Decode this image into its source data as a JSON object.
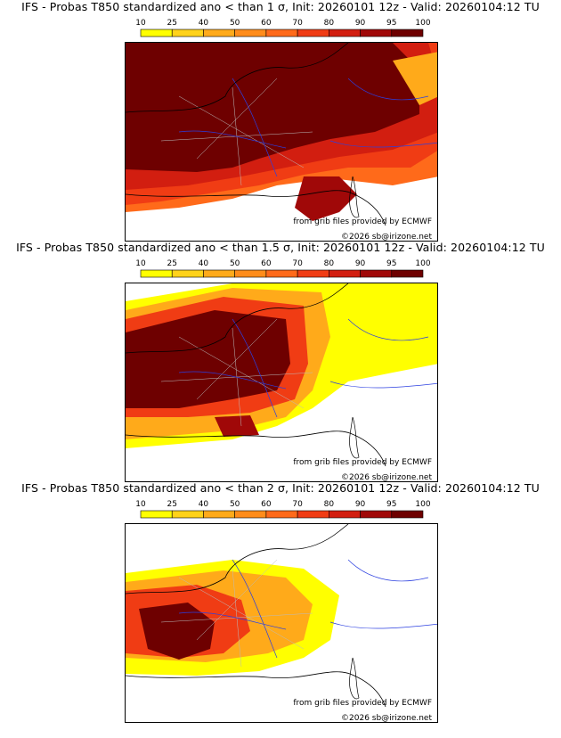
{
  "panels": [
    {
      "title": "IFS - Probas T850  standardized ano < than 1 σ, Init: 20260101 12z - Valid: 20260104:12 TU",
      "threshold_sigma": 1,
      "source_text": "from grib files provided by ECMWF",
      "copyright_text": "©2026 sb@irizone.net",
      "coverage": "severe"
    },
    {
      "title": "IFS - Probas T850  standardized ano < than 1.5 σ, Init: 20260101 12z - Valid: 20260104:12 TU",
      "threshold_sigma": 1.5,
      "source_text": "from grib files provided by ECMWF",
      "copyright_text": "©2026 sb@irizone.net",
      "coverage": "moderate"
    },
    {
      "title": "IFS - Probas T850  standardized ano < than 2 σ, Init: 20260101 12z - Valid: 20260104:12 TU",
      "threshold_sigma": 2,
      "source_text": "from grib files provided by ECMWF",
      "copyright_text": "©2026 sb@irizone.net",
      "coverage": "light"
    }
  ],
  "colorbar": {
    "ticks": [
      "10",
      "25",
      "40",
      "50",
      "60",
      "70",
      "80",
      "90",
      "95",
      "100"
    ],
    "colors": [
      "#ffff00",
      "#ffd21a",
      "#ffaa1a",
      "#ff8c1a",
      "#ff6a1a",
      "#f03c14",
      "#d21e10",
      "#a00808",
      "#6e0000"
    ]
  },
  "colors": {
    "land_outline": "#000000",
    "rivers": "#2b3fe0",
    "regions": "#bbbbbb"
  }
}
